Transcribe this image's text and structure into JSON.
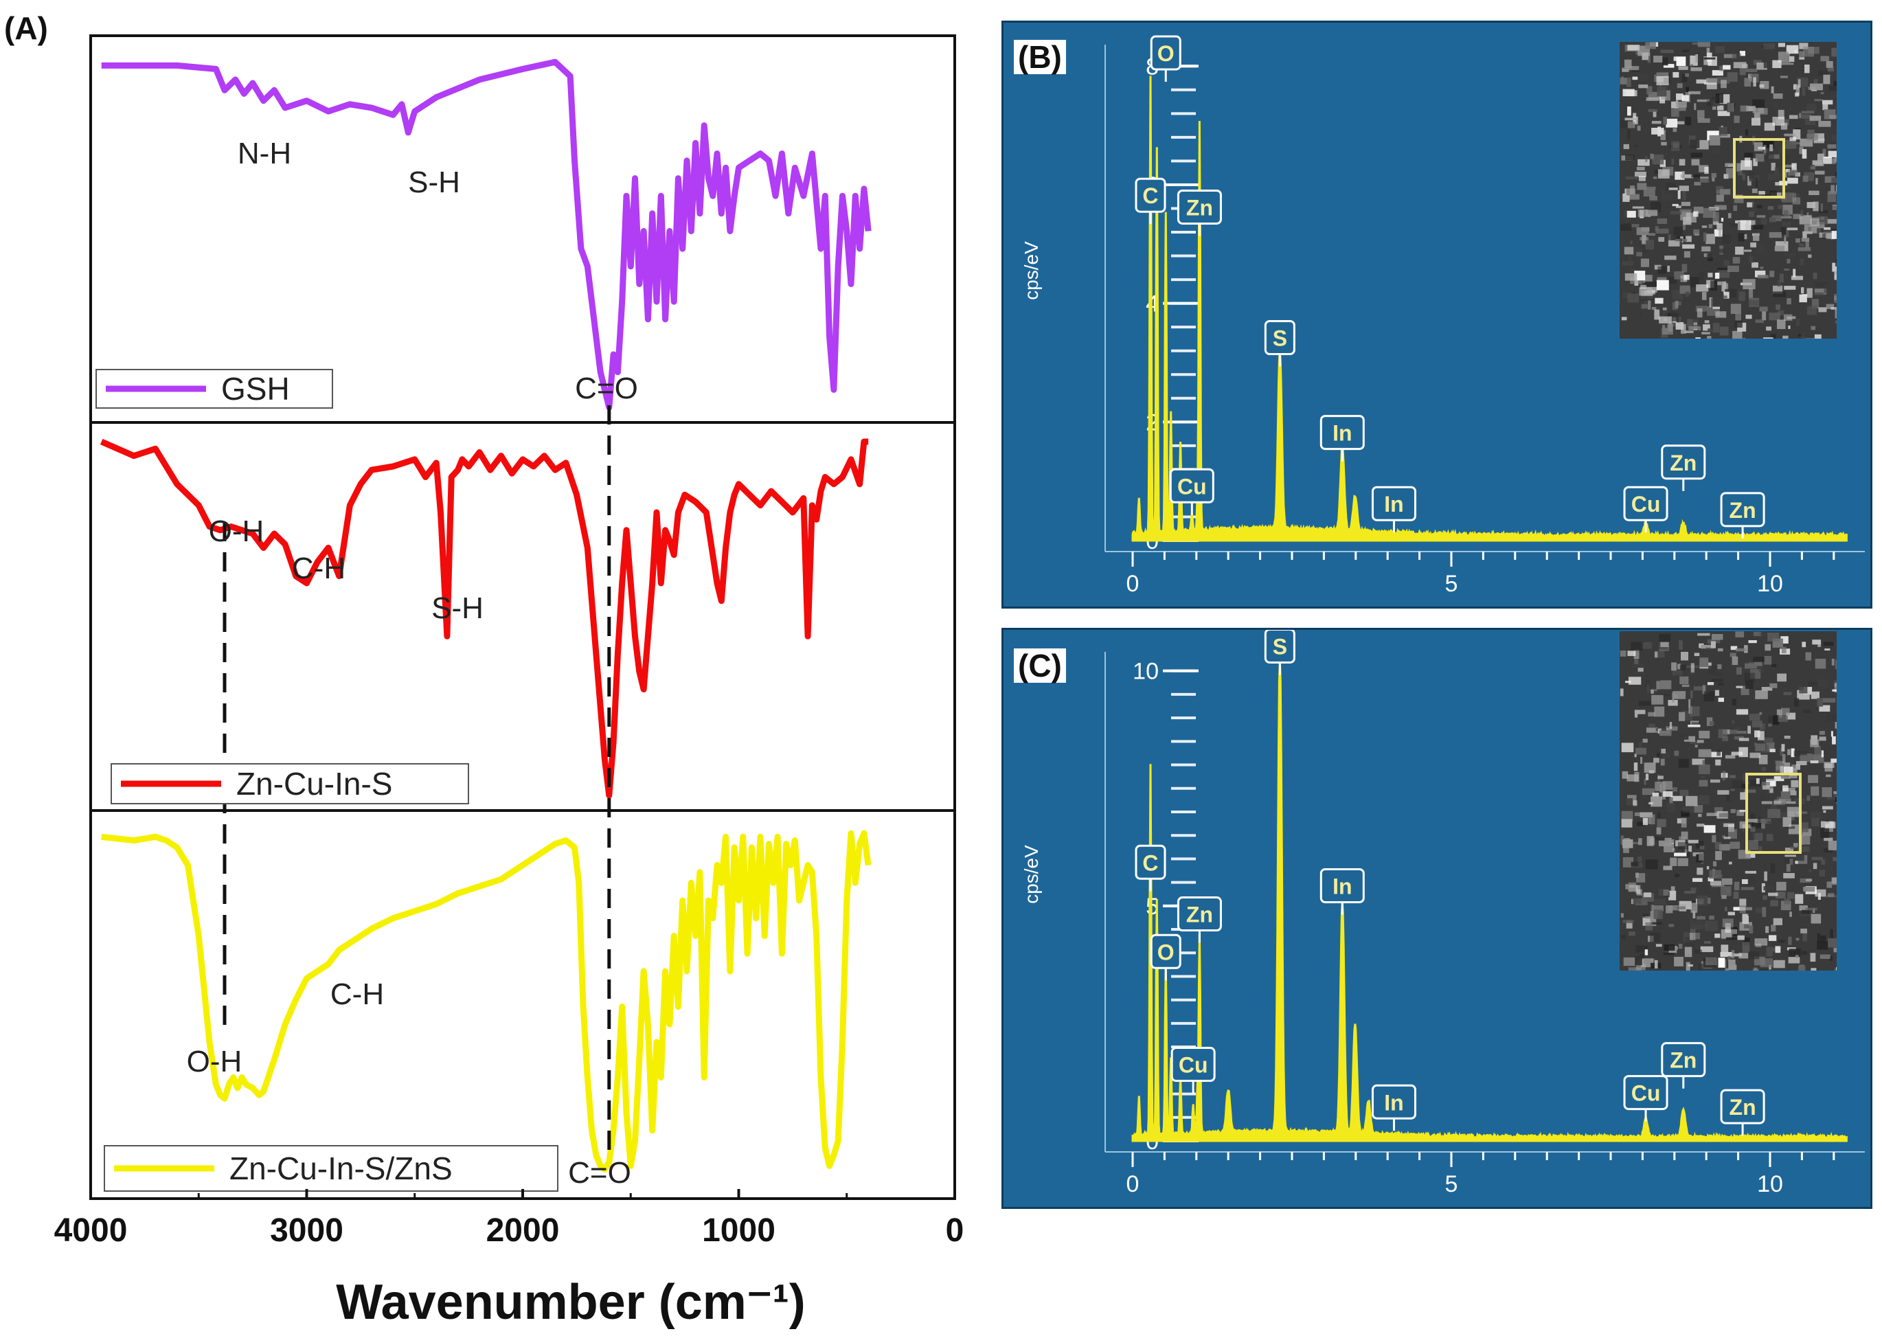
{
  "figure": {
    "panel_labels": {
      "a": "(A)",
      "b": "(B)",
      "c": "(C)"
    }
  },
  "chart_data": [
    {
      "type": "line",
      "panel": "(A)",
      "xlabel": "Wavenumber (cm⁻¹)",
      "ylabel": "",
      "xlim": [
        4000,
        0
      ],
      "xticks": [
        "4000",
        "3000",
        "2000",
        "1000",
        "0"
      ],
      "grid": false,
      "stacked_subpanels": true,
      "series": [
        {
          "name": "GSH",
          "color": "#b13df5",
          "x": [
            3950,
            3600,
            3420,
            3380,
            3330,
            3290,
            3250,
            3200,
            3150,
            3100,
            3000,
            2900,
            2800,
            2700,
            2600,
            2560,
            2530,
            2500,
            2400,
            2200,
            2000,
            1850,
            1780,
            1760,
            1730,
            1700,
            1660,
            1640,
            1620,
            1600,
            1580,
            1560,
            1540,
            1520,
            1500,
            1480,
            1460,
            1440,
            1420,
            1400,
            1380,
            1360,
            1340,
            1320,
            1300,
            1280,
            1260,
            1240,
            1220,
            1200,
            1180,
            1160,
            1140,
            1120,
            1100,
            1080,
            1060,
            1040,
            1020,
            1000,
            950,
            900,
            860,
            830,
            800,
            770,
            740,
            700,
            660,
            620,
            600,
            580,
            560,
            540,
            520,
            500,
            480,
            460,
            440,
            420,
            400
          ],
          "y": [
            97,
            97,
            96,
            90,
            93,
            89,
            92,
            87,
            90,
            85,
            87,
            84,
            86,
            85,
            83,
            86,
            78,
            84,
            88,
            93,
            96,
            98,
            94,
            70,
            45,
            40,
            20,
            10,
            5,
            0,
            15,
            10,
            30,
            60,
            40,
            65,
            35,
            50,
            25,
            55,
            30,
            60,
            25,
            50,
            30,
            65,
            45,
            70,
            50,
            75,
            55,
            80,
            65,
            60,
            72,
            55,
            68,
            50,
            60,
            68,
            70,
            72,
            70,
            60,
            72,
            55,
            68,
            60,
            72,
            45,
            60,
            20,
            5,
            40,
            60,
            50,
            35,
            60,
            45,
            62,
            50
          ]
        },
        {
          "name": "Zn-Cu-In-S",
          "color": "#f20b0b",
          "x": [
            3950,
            3800,
            3700,
            3600,
            3500,
            3450,
            3400,
            3350,
            3300,
            3250,
            3200,
            3150,
            3100,
            3050,
            3000,
            2950,
            2900,
            2850,
            2800,
            2750,
            2700,
            2600,
            2500,
            2450,
            2400,
            2380,
            2350,
            2330,
            2300,
            2280,
            2250,
            2200,
            2150,
            2100,
            2050,
            2000,
            1950,
            1900,
            1850,
            1800,
            1750,
            1700,
            1680,
            1660,
            1640,
            1620,
            1600,
            1580,
            1560,
            1540,
            1520,
            1500,
            1480,
            1460,
            1440,
            1420,
            1400,
            1380,
            1360,
            1340,
            1320,
            1300,
            1280,
            1250,
            1200,
            1150,
            1100,
            1080,
            1060,
            1040,
            1020,
            1000,
            950,
            900,
            850,
            800,
            750,
            700,
            680,
            660,
            640,
            620,
            600,
            560,
            520,
            480,
            440,
            420,
            400
          ],
          "y": [
            100,
            96,
            98,
            88,
            82,
            76,
            75,
            76,
            75,
            74,
            70,
            74,
            71,
            62,
            60,
            66,
            70,
            62,
            82,
            88,
            92,
            93,
            95,
            90,
            94,
            80,
            45,
            90,
            92,
            95,
            93,
            97,
            92,
            96,
            91,
            95,
            93,
            96,
            92,
            94,
            85,
            70,
            55,
            40,
            25,
            10,
            0,
            15,
            40,
            60,
            75,
            60,
            45,
            35,
            30,
            45,
            60,
            80,
            60,
            75,
            72,
            68,
            80,
            85,
            83,
            80,
            60,
            55,
            70,
            80,
            85,
            88,
            85,
            82,
            86,
            83,
            80,
            84,
            45,
            82,
            78,
            86,
            90,
            88,
            90,
            95,
            88,
            100,
            100
          ]
        },
        {
          "name": "Zn-Cu-In-S/ZnS",
          "color": "#f5f000",
          "x": [
            3950,
            3800,
            3700,
            3650,
            3600,
            3550,
            3500,
            3450,
            3420,
            3400,
            3380,
            3360,
            3340,
            3320,
            3300,
            3280,
            3250,
            3220,
            3200,
            3150,
            3100,
            3050,
            3000,
            2950,
            2900,
            2850,
            2800,
            2700,
            2600,
            2500,
            2400,
            2300,
            2200,
            2100,
            2000,
            1900,
            1850,
            1800,
            1760,
            1740,
            1720,
            1700,
            1680,
            1660,
            1640,
            1620,
            1600,
            1580,
            1560,
            1540,
            1520,
            1500,
            1480,
            1460,
            1440,
            1420,
            1400,
            1380,
            1360,
            1340,
            1320,
            1300,
            1280,
            1260,
            1240,
            1220,
            1200,
            1180,
            1160,
            1140,
            1120,
            1100,
            1080,
            1060,
            1040,
            1020,
            1000,
            980,
            960,
            940,
            920,
            900,
            880,
            860,
            840,
            820,
            800,
            780,
            760,
            740,
            720,
            700,
            680,
            660,
            640,
            620,
            600,
            580,
            560,
            540,
            520,
            500,
            480,
            460,
            440,
            420,
            400
          ],
          "y": [
            98,
            97,
            98,
            97,
            95,
            90,
            70,
            40,
            28,
            25,
            24,
            28,
            30,
            27,
            30,
            28,
            27,
            25,
            26,
            35,
            45,
            52,
            58,
            60,
            62,
            66,
            68,
            72,
            75,
            77,
            79,
            82,
            84,
            86,
            90,
            94,
            96,
            97,
            95,
            85,
            50,
            30,
            15,
            8,
            5,
            4,
            6,
            15,
            30,
            50,
            20,
            5,
            12,
            35,
            60,
            45,
            15,
            40,
            30,
            60,
            45,
            70,
            50,
            80,
            60,
            85,
            70,
            88,
            30,
            80,
            75,
            90,
            85,
            98,
            60,
            95,
            80,
            98,
            65,
            95,
            75,
            98,
            70,
            96,
            85,
            98,
            65,
            96,
            90,
            97,
            80,
            85,
            90,
            88,
            70,
            30,
            10,
            5,
            8,
            12,
            40,
            80,
            99,
            85,
            96,
            99,
            90
          ]
        }
      ],
      "annotations": [
        {
          "label": "N-H",
          "subpanel": 0,
          "x": 3300
        },
        {
          "label": "S-H",
          "subpanel": 0,
          "x": 2520
        },
        {
          "label": "C=O",
          "subpanel": 0,
          "x": 1600
        },
        {
          "label": "O-H",
          "subpanel": 1,
          "x": 3360
        },
        {
          "label": "C-H",
          "subpanel": 1,
          "x": 2950
        },
        {
          "label": "S-H",
          "subpanel": 1,
          "x": 2300
        },
        {
          "label": "C-H",
          "subpanel": 2,
          "x": 2760
        },
        {
          "label": "O-H",
          "subpanel": 2,
          "x": 3390
        },
        {
          "label": "C=O",
          "subpanel": 2,
          "x": 1600
        }
      ],
      "reference_lines_x": [
        3380,
        1600
      ]
    },
    {
      "type": "line",
      "panel": "(B)",
      "ylabel": "cps/eV",
      "xlim": [
        0,
        11.2
      ],
      "ylim": [
        0,
        8.2
      ],
      "xticks": [
        "0",
        "5",
        "10"
      ],
      "yticks": [
        "0",
        "2",
        "4",
        "6",
        "8"
      ],
      "background": "#1f6698",
      "fill_color": "#f2ea1c",
      "peaks": [
        {
          "x": 0.1,
          "h": 0.6
        },
        {
          "x": 0.28,
          "h": 7.7
        },
        {
          "x": 0.38,
          "h": 6.5
        },
        {
          "x": 0.52,
          "h": 5.4
        },
        {
          "x": 0.6,
          "h": 2.0
        },
        {
          "x": 0.75,
          "h": 1.5
        },
        {
          "x": 0.93,
          "h": 0.3
        },
        {
          "x": 1.02,
          "h": 0.55
        },
        {
          "x": 1.05,
          "h": 6.9
        },
        {
          "x": 2.31,
          "h": 3.0
        },
        {
          "x": 3.29,
          "h": 1.4
        },
        {
          "x": 3.49,
          "h": 0.6
        },
        {
          "x": 8.05,
          "h": 0.2
        },
        {
          "x": 8.64,
          "h": 0.2
        }
      ],
      "element_labels": [
        {
          "label": "O",
          "x": 0.52,
          "y": 8.2
        },
        {
          "label": "C",
          "x": 0.28,
          "y": 5.8
        },
        {
          "label": "Zn",
          "x": 1.05,
          "y": 5.6
        },
        {
          "label": "S",
          "x": 2.31,
          "y": 3.4
        },
        {
          "label": "In",
          "x": 3.29,
          "y": 1.8
        },
        {
          "label": "Cu",
          "x": 0.93,
          "y": 0.9
        },
        {
          "label": "In",
          "x": 4.1,
          "y": 0.6
        },
        {
          "label": "Cu",
          "x": 8.05,
          "y": 0.6
        },
        {
          "label": "Zn",
          "x": 8.64,
          "y": 1.3
        },
        {
          "label": "Zn",
          "x": 9.57,
          "y": 0.5
        }
      ]
    },
    {
      "type": "line",
      "panel": "(C)",
      "ylabel": "cps/eV",
      "xlim": [
        0,
        11.2
      ],
      "ylim": [
        0,
        10.2
      ],
      "xticks": [
        "0",
        "5",
        "10"
      ],
      "yticks": [
        "0",
        "5",
        "10"
      ],
      "background": "#1f6698",
      "fill_color": "#f2ea1c",
      "peaks": [
        {
          "x": 0.1,
          "h": 0.8
        },
        {
          "x": 0.28,
          "h": 7.9
        },
        {
          "x": 0.38,
          "h": 5.0
        },
        {
          "x": 0.52,
          "h": 3.6
        },
        {
          "x": 0.6,
          "h": 1.6
        },
        {
          "x": 0.75,
          "h": 1.2
        },
        {
          "x": 0.95,
          "h": 0.6
        },
        {
          "x": 1.02,
          "h": 1.0
        },
        {
          "x": 1.05,
          "h": 4.2
        },
        {
          "x": 1.5,
          "h": 0.9
        },
        {
          "x": 2.31,
          "h": 10.1
        },
        {
          "x": 3.29,
          "h": 4.9
        },
        {
          "x": 3.49,
          "h": 2.3
        },
        {
          "x": 3.7,
          "h": 0.7
        },
        {
          "x": 8.05,
          "h": 0.35
        },
        {
          "x": 8.64,
          "h": 0.6
        }
      ],
      "element_labels": [
        {
          "label": "S",
          "x": 2.31,
          "y": 10.5
        },
        {
          "label": "C",
          "x": 0.28,
          "y": 5.9
        },
        {
          "label": "Zn",
          "x": 1.05,
          "y": 4.8
        },
        {
          "label": "O",
          "x": 0.52,
          "y": 4.0
        },
        {
          "label": "In",
          "x": 3.29,
          "y": 5.4
        },
        {
          "label": "Cu",
          "x": 0.95,
          "y": 1.6
        },
        {
          "label": "In",
          "x": 4.1,
          "y": 0.8
        },
        {
          "label": "Cu",
          "x": 8.05,
          "y": 1.0
        },
        {
          "label": "Zn",
          "x": 8.64,
          "y": 1.7
        },
        {
          "label": "Zn",
          "x": 9.57,
          "y": 0.7
        }
      ]
    }
  ]
}
